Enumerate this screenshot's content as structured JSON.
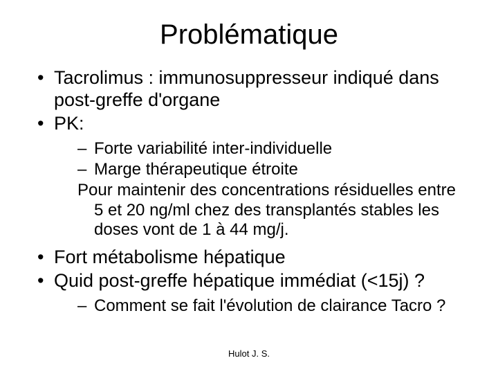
{
  "title": "Problématique",
  "bullets": {
    "b1": "Tacrolimus : immunosuppresseur indiqué dans post-greffe d'organe",
    "b2": "PK:",
    "b2_sub1": "Forte variabilité inter-individuelle",
    "b2_sub2": "Marge thérapeutique étroite",
    "b2_sub3a": "Pour maintenir des concentrations résiduelles entre",
    "b2_sub3b": "5 et 20 ng/ml chez des transplantés stables les doses vont de 1 à 44 mg/j.",
    "b3": "Fort métabolisme hépatique",
    "b4": "Quid post-greffe hépatique immédiat (<15j) ?",
    "b4_sub1": "Comment se fait l'évolution de clairance Tacro ?"
  },
  "footer": "Hulot J. S."
}
